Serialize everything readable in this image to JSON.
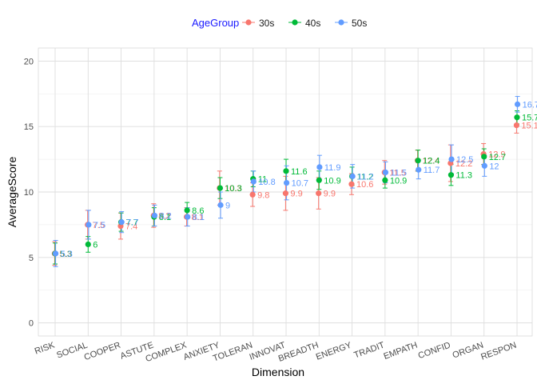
{
  "chart_data": {
    "type": "scatter",
    "xlabel": "Dimension",
    "ylabel": "AverageScore",
    "ylim": [
      -1,
      21
    ],
    "yticks": [
      0,
      5,
      10,
      15,
      20
    ],
    "grid": true,
    "legend_position": "top",
    "legend": {
      "title": "AgeGroup",
      "title_color": "#1a1aff",
      "entries": [
        "30s",
        "40s",
        "50s"
      ]
    },
    "categories": [
      "RISK",
      "SOCIAL",
      "COOPER",
      "ASTUTE",
      "COMPLEX",
      "ANXIETY",
      "TOLERAN",
      "INNOVAT",
      "BREADTH",
      "ENERGY",
      "TRADIT",
      "EMPATH",
      "CONFID",
      "ORGAN",
      "RESPON"
    ],
    "series": [
      {
        "name": "30s",
        "color": "#f8766d",
        "values": [
          5.3,
          7.5,
          7.4,
          8.2,
          8.1,
          10.3,
          9.8,
          9.9,
          9.9,
          10.6,
          11.5,
          12.4,
          12.2,
          12.9,
          15.1
        ],
        "labels": [
          "5.3",
          "7.5",
          "7.4",
          "8.2",
          "8.1",
          "10.3",
          "9.8",
          "9.9",
          "9.9",
          "10.6",
          "11.5",
          "12.4",
          "12.2",
          "12.9",
          "15.1"
        ],
        "error": [
          0.9,
          1.1,
          1.0,
          0.9,
          0.7,
          1.3,
          0.9,
          1.3,
          1.2,
          0.8,
          0.9,
          0.8,
          1.4,
          0.8,
          0.6
        ]
      },
      {
        "name": "40s",
        "color": "#00ba38",
        "values": [
          5.3,
          6.0,
          7.7,
          8.1,
          8.6,
          10.3,
          11.0,
          11.6,
          10.9,
          11.2,
          10.9,
          12.4,
          11.3,
          12.7,
          15.7
        ],
        "labels": [
          "5.3",
          "6",
          "7.7",
          "8.1",
          "8.6",
          "10.3",
          "11",
          "11.6",
          "10.9",
          "11.2",
          "10.9",
          "12.4",
          "11.3",
          "12.7",
          "15.7"
        ],
        "error": [
          0.8,
          0.6,
          0.7,
          0.7,
          0.6,
          0.8,
          0.6,
          0.9,
          0.7,
          0.7,
          0.6,
          0.8,
          0.8,
          0.6,
          0.5
        ]
      },
      {
        "name": "50s",
        "color": "#619cff",
        "values": [
          5.3,
          7.5,
          7.7,
          8.2,
          8.1,
          9.0,
          10.8,
          10.7,
          11.9,
          11.2,
          11.5,
          11.7,
          12.5,
          12.0,
          16.7
        ],
        "labels": [
          "5.3",
          "7.5",
          "7.7",
          "8.2",
          "8.1",
          "9",
          "10.8",
          "10.7",
          "11.9",
          "11.2",
          "11.5",
          "11.7",
          "12.5",
          "12",
          "16.7"
        ],
        "error": [
          1.0,
          1.1,
          0.8,
          0.8,
          0.7,
          1.0,
          0.8,
          1.3,
          0.9,
          0.9,
          0.8,
          0.7,
          1.1,
          0.8,
          0.6
        ]
      }
    ]
  }
}
